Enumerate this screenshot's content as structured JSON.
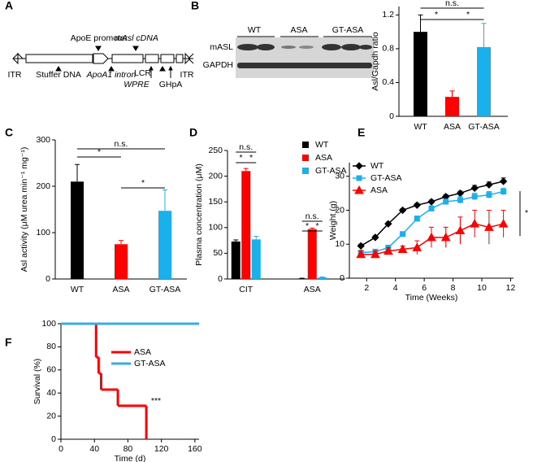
{
  "figure": {
    "panel_labels": [
      "A",
      "B",
      "C",
      "D",
      "E",
      "F"
    ]
  },
  "diagram_a": {
    "labels": [
      "ApoE promoter",
      "mAsl cDNA",
      "ITR",
      "Stuffer DNA",
      "ApoA1 intron",
      "LCR",
      "ITR",
      "WPRE",
      "GHpA"
    ]
  },
  "blot_b": {
    "lanes": [
      "WT",
      "ASA",
      "GT-ASA"
    ],
    "rows": [
      "mASL",
      "GAPDH"
    ]
  },
  "chart_data": [
    {
      "type": "bar",
      "categories": [
        "WT",
        "ASA",
        "GT-ASA"
      ],
      "values": [
        1.0,
        0.23,
        0.82
      ],
      "errors": [
        0.2,
        0.07,
        0.28
      ],
      "colors": [
        "#000000",
        "#ff0000",
        "#1ab0ec"
      ],
      "ylabel": "Asl/Gapdh ratio",
      "ylim": [
        0,
        1.3
      ],
      "yticks": [
        0,
        0.4,
        0.8,
        1.2
      ],
      "annotations": [
        "n.s.",
        "*",
        "*"
      ]
    },
    {
      "type": "bar",
      "categories": [
        "WT",
        "ASA",
        "GT-ASA"
      ],
      "values": [
        210,
        75,
        147
      ],
      "errors": [
        37,
        8,
        45
      ],
      "colors": [
        "#000000",
        "#ff0000",
        "#1ab0ec"
      ],
      "ylabel": "Asl activity (μM urea min⁻¹ mg⁻¹)",
      "ylim": [
        0,
        300
      ],
      "yticks": [
        0,
        100,
        200,
        300
      ],
      "annotations": [
        "n.s.",
        "*",
        "*"
      ]
    },
    {
      "type": "grouped_bar",
      "categories": [
        "CIT",
        "ASA"
      ],
      "ylabel": "Plasma concentration (μM)",
      "ylim": [
        0,
        250
      ],
      "yticks": [
        0,
        50,
        100,
        150,
        200,
        250
      ],
      "series": [
        {
          "name": "WT",
          "color": "#000000",
          "values": [
            73,
            1
          ],
          "errors": [
            3,
            0.5
          ]
        },
        {
          "name": "ASA",
          "color": "#ff0000",
          "values": [
            210,
            97
          ],
          "errors": [
            5,
            2
          ]
        },
        {
          "name": "GT-ASA",
          "color": "#1ab0ec",
          "values": [
            77,
            3
          ],
          "errors": [
            6,
            1
          ]
        }
      ],
      "annotations": [
        "n.s.",
        "*",
        "*",
        "n.s.",
        "*",
        "*"
      ]
    },
    {
      "type": "line",
      "xlabel": "Time (Weeks)",
      "ylabel": "Weight (g)",
      "x": [
        1.6,
        2.6,
        3.5,
        4.5,
        5.5,
        6.5,
        7.5,
        8.5,
        9.5,
        10.5,
        11.5
      ],
      "xlim": [
        0.8,
        12.2
      ],
      "xticks": [
        2,
        4,
        6,
        8,
        10,
        12
      ],
      "ylim": [
        0,
        34
      ],
      "yticks": [
        0,
        10,
        20,
        30
      ],
      "series": [
        {
          "name": "WT",
          "color": "#000000",
          "marker": "diamond",
          "values": [
            9.5,
            12,
            16,
            20,
            21.5,
            22.5,
            24,
            25,
            26.5,
            27.5,
            28.5
          ],
          "errors": [
            0.5,
            0.5,
            0.5,
            0.5,
            0.5,
            0.5,
            0.6,
            0.6,
            0.8,
            0.8,
            1
          ]
        },
        {
          "name": "GT-ASA",
          "color": "#1ab0ec",
          "marker": "square",
          "values": [
            7.5,
            7.8,
            9,
            13,
            17.5,
            20.5,
            22.5,
            23,
            24,
            24.5,
            25.5
          ],
          "errors": [
            0.5,
            0.5,
            0.5,
            0.6,
            0.8,
            0.8,
            0.8,
            1,
            1,
            1,
            1
          ]
        },
        {
          "name": "ASA",
          "color": "#ff0000",
          "marker": "triangle",
          "values": [
            7,
            7,
            8,
            8.5,
            9,
            12,
            12,
            14,
            16,
            15,
            16
          ],
          "errors": [
            1,
            1,
            1,
            1,
            2,
            3,
            3,
            4,
            4,
            5,
            4
          ]
        }
      ],
      "annotations": [
        "*"
      ]
    },
    {
      "type": "step",
      "xlabel": "Time (d)",
      "ylabel": "Survival (%)",
      "xlim": [
        0,
        165
      ],
      "xticks": [
        0,
        40,
        80,
        120,
        160
      ],
      "ylim": [
        0,
        100
      ],
      "yticks": [
        0,
        20,
        40,
        60,
        80,
        100
      ],
      "series": [
        {
          "name": "ASA",
          "color": "#ff0000",
          "x": [
            0,
            42,
            45,
            48,
            68,
            102
          ],
          "values": [
            100,
            71,
            57,
            43,
            29,
            0
          ]
        },
        {
          "name": "GT-ASA",
          "color": "#3ba9e8",
          "x": [
            0,
            165
          ],
          "values": [
            100,
            100
          ]
        }
      ],
      "annotations": [
        "***"
      ]
    }
  ]
}
